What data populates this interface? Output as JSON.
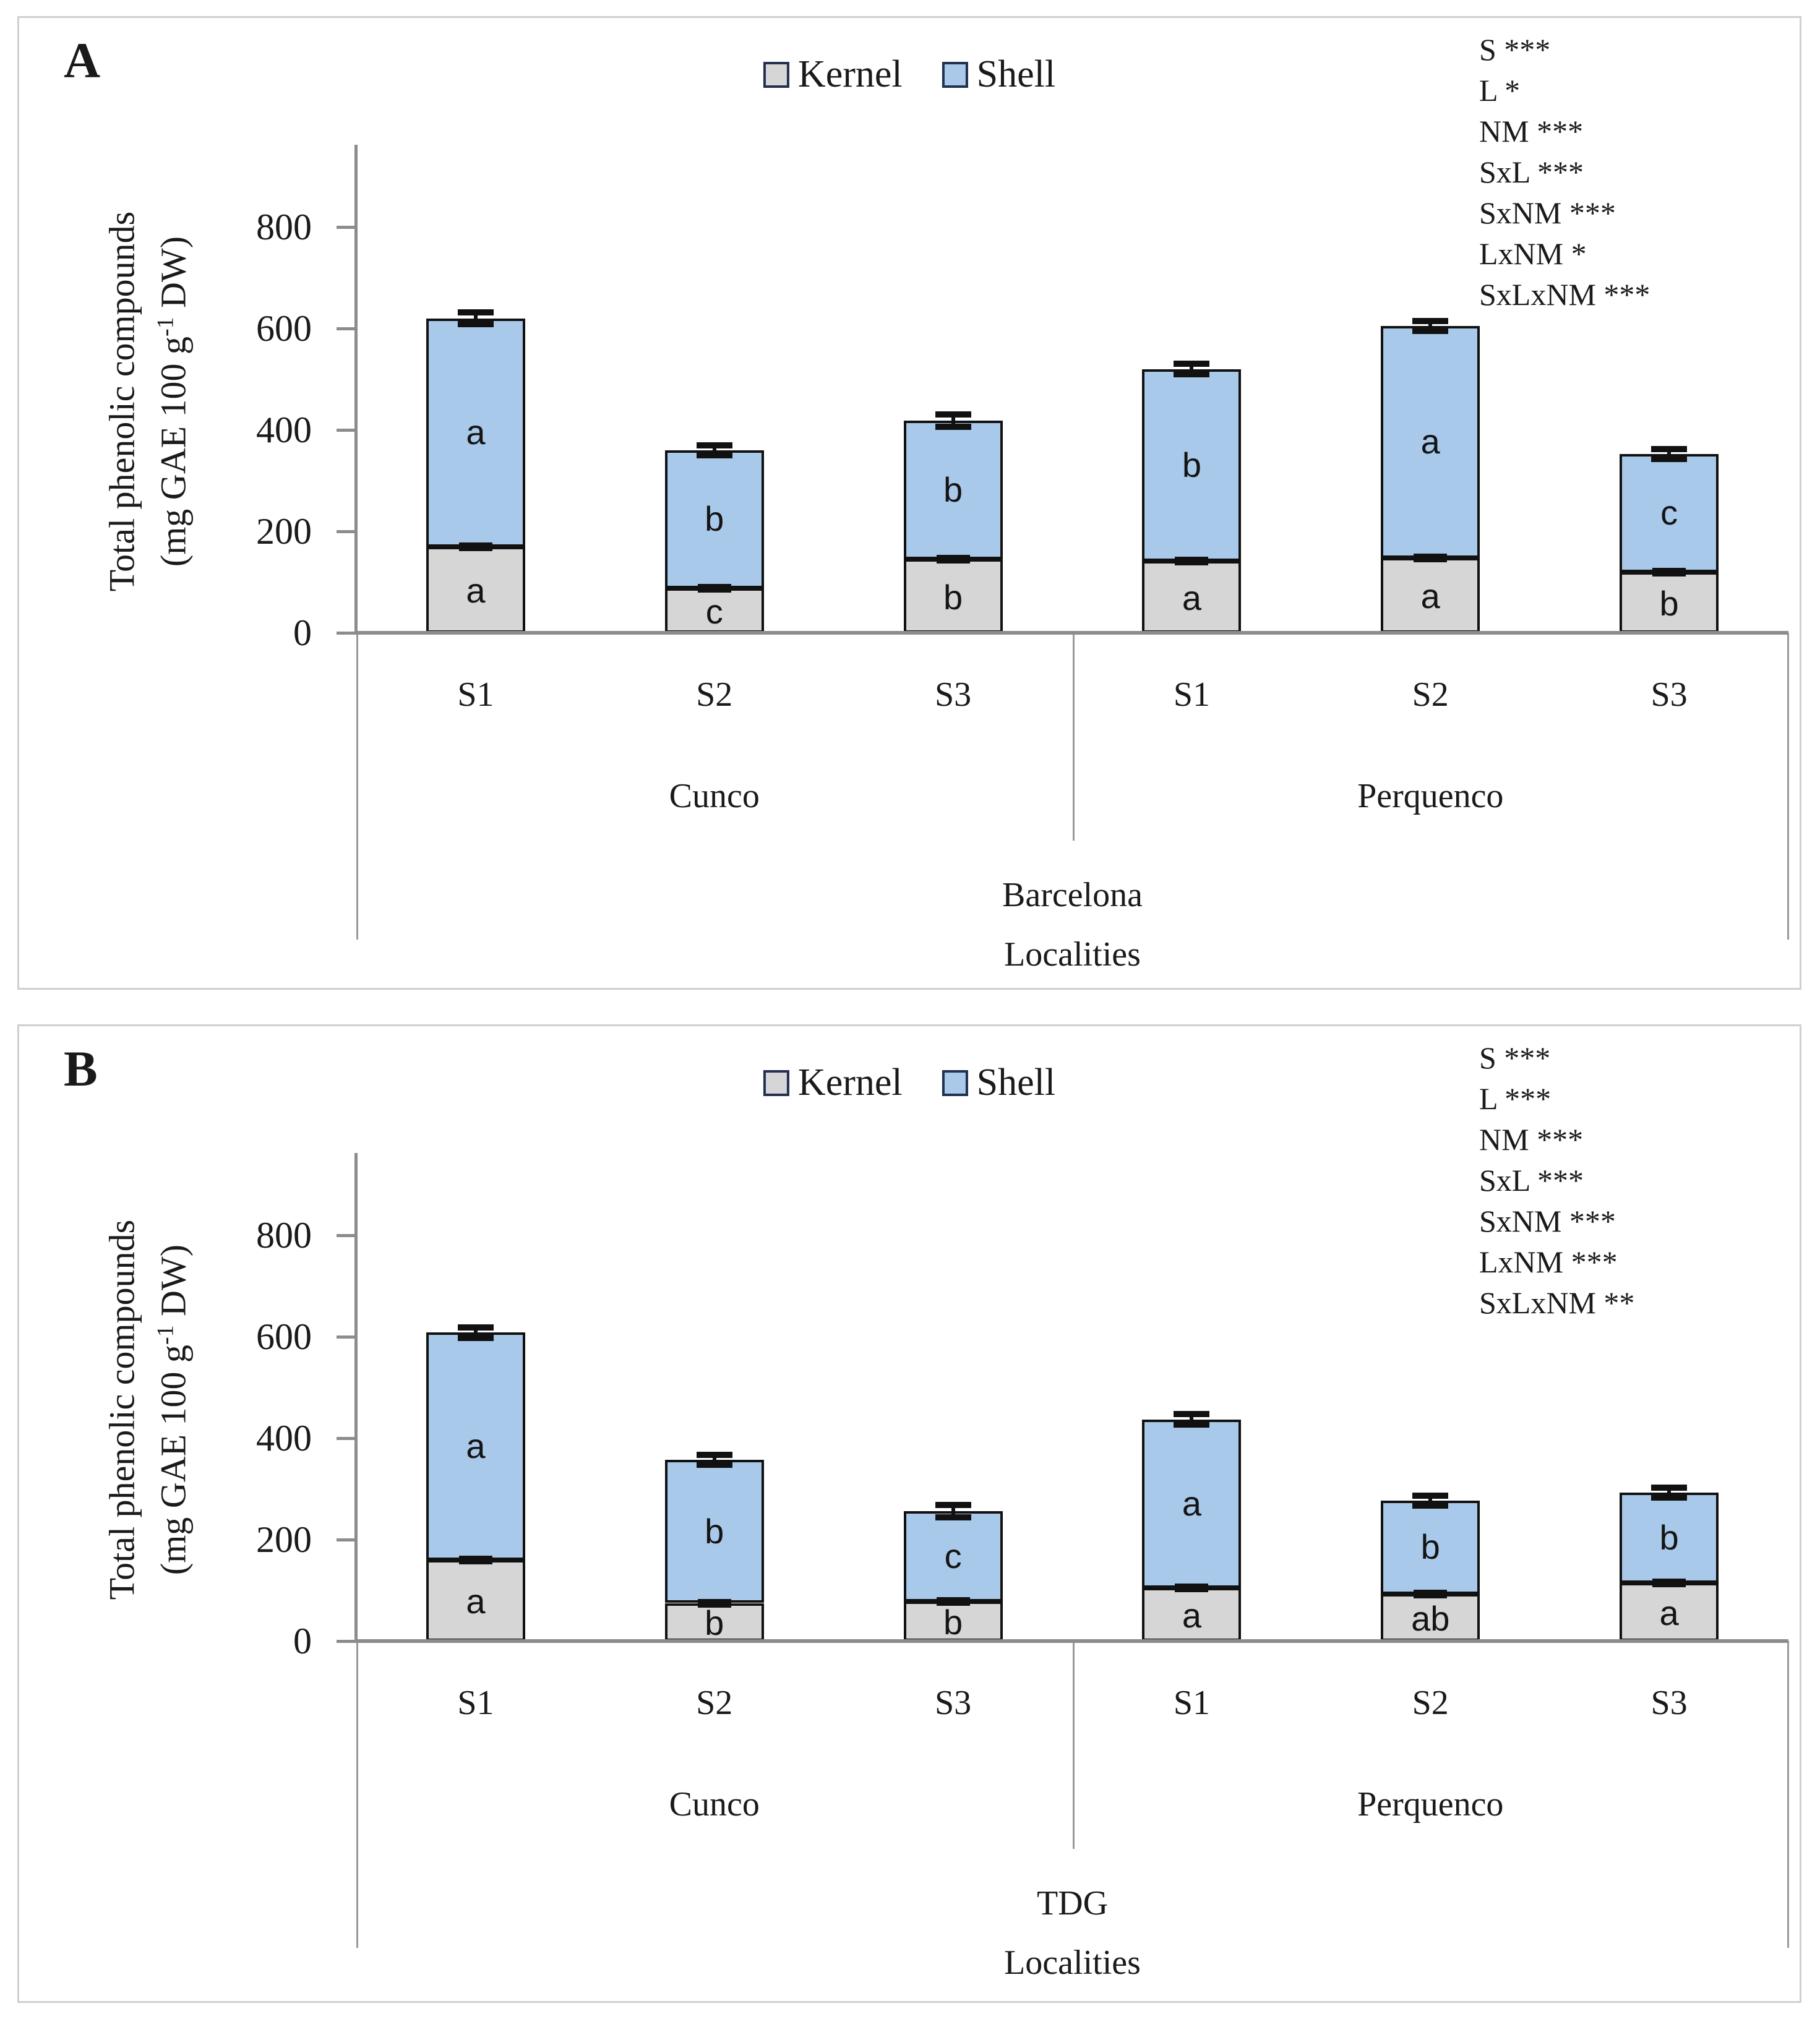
{
  "figure": {
    "legend": {
      "items": [
        {
          "label": "Kernel",
          "color": "#d6d6d6"
        },
        {
          "label": "Shell",
          "color": "#a9c9ea"
        }
      ]
    },
    "colors": {
      "kernel_fill": "#d6d6d6",
      "shell_fill": "#a9c9ea",
      "bar_border": "#111111",
      "axis_gray": "#8c8c8c",
      "panel_border": "#cfcfcf"
    }
  },
  "chart_data": [
    {
      "type": "bar",
      "stacked": true,
      "panel_label": "A",
      "cultivar": "Barcelona",
      "x_axis_title": "Localities",
      "y_axis_title_line1": "Total phenolic compounds",
      "y_axis_title_line2_pre": "(mg GAE 100 g",
      "y_axis_title_sup": "-1",
      "y_axis_title_line2_post": " DW)",
      "ylim": [
        0,
        880
      ],
      "yticks": [
        0,
        200,
        400,
        600,
        800
      ],
      "grid": false,
      "legend_position": "top-center",
      "localities": [
        {
          "name": "Cunco",
          "seasons": [
            "S1",
            "S2",
            "S3"
          ]
        },
        {
          "name": "Perquenco",
          "seasons": [
            "S1",
            "S2",
            "S3"
          ]
        }
      ],
      "categories": [
        "Cunco S1",
        "Cunco S2",
        "Cunco S3",
        "Perquenco S1",
        "Perquenco S2",
        "Perquenco S3"
      ],
      "series": [
        {
          "name": "Kernel",
          "color": "#d6d6d6",
          "values": [
            170,
            88,
            145,
            142,
            148,
            120
          ],
          "letters": [
            "a",
            "c",
            "b",
            "a",
            "a",
            "b"
          ]
        },
        {
          "name": "Shell",
          "color": "#a9c9ea",
          "values": [
            450,
            272,
            273,
            378,
            457,
            232
          ],
          "letters": [
            "a",
            "b",
            "b",
            "b",
            "a",
            "c"
          ]
        }
      ],
      "totals": [
        620,
        360,
        418,
        520,
        605,
        352
      ],
      "total_error": [
        12,
        10,
        12,
        10,
        8,
        8
      ],
      "kernel_error": [
        5,
        5,
        5,
        5,
        5,
        5
      ],
      "anova": [
        {
          "factor": "S",
          "stars": "***"
        },
        {
          "factor": "L",
          "stars": "*"
        },
        {
          "factor": "NM",
          "stars": "***"
        },
        {
          "factor": "SxL",
          "stars": "***"
        },
        {
          "factor": "SxNM",
          "stars": "***"
        },
        {
          "factor": "LxNM",
          "stars": "*"
        },
        {
          "factor": "SxLxNM",
          "stars": "***"
        }
      ]
    },
    {
      "type": "bar",
      "stacked": true,
      "panel_label": "B",
      "cultivar": "TDG",
      "x_axis_title": "Localities",
      "y_axis_title_line1": "Total phenolic compounds",
      "y_axis_title_line2_pre": "(mg GAE 100 g",
      "y_axis_title_sup": "-1",
      "y_axis_title_line2_post": " DW)",
      "ylim": [
        0,
        880
      ],
      "yticks": [
        0,
        200,
        400,
        600,
        800
      ],
      "grid": false,
      "legend_position": "top-center",
      "localities": [
        {
          "name": "Cunco",
          "seasons": [
            "S1",
            "S2",
            "S3"
          ]
        },
        {
          "name": "Perquenco",
          "seasons": [
            "S1",
            "S2",
            "S3"
          ]
        }
      ],
      "categories": [
        "Cunco S1",
        "Cunco S2",
        "Cunco S3",
        "Perquenco S1",
        "Perquenco S2",
        "Perquenco S3"
      ],
      "series": [
        {
          "name": "Kernel",
          "color": "#d6d6d6",
          "values": [
            160,
            75,
            78,
            105,
            93,
            115
          ],
          "letters": [
            "a",
            "b",
            "b",
            "a",
            "ab",
            "a"
          ]
        },
        {
          "name": "Shell",
          "color": "#a9c9ea",
          "values": [
            448,
            282,
            178,
            332,
            184,
            178
          ],
          "letters": [
            "a",
            "b",
            "c",
            "a",
            "b",
            "b"
          ]
        }
      ],
      "totals": [
        608,
        357,
        256,
        437,
        277,
        293
      ],
      "total_error": [
        10,
        10,
        12,
        10,
        8,
        10
      ],
      "kernel_error": [
        5,
        5,
        5,
        5,
        5,
        5
      ],
      "anova": [
        {
          "factor": "S",
          "stars": "***"
        },
        {
          "factor": "L",
          "stars": "***"
        },
        {
          "factor": "NM",
          "stars": "***"
        },
        {
          "factor": "SxL",
          "stars": "***"
        },
        {
          "factor": "SxNM",
          "stars": "***"
        },
        {
          "factor": "LxNM",
          "stars": "***"
        },
        {
          "factor": "SxLxNM",
          "stars": "**"
        }
      ]
    }
  ]
}
